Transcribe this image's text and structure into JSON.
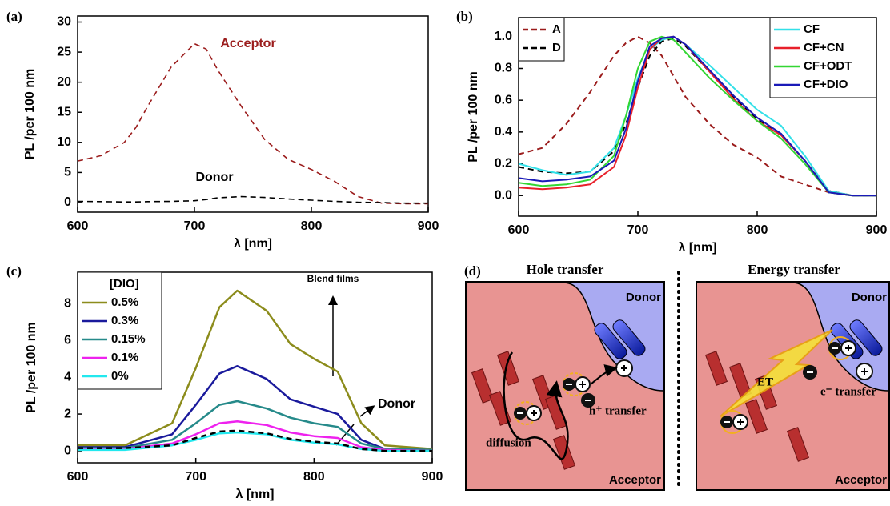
{
  "chart_data": [
    {
      "type": "line",
      "panel_label": "(a)",
      "xlabel": "λ [nm]",
      "ylabel": "PL /per 100 nm",
      "xlim": [
        600,
        900
      ],
      "ylim": [
        -1.6,
        31
      ],
      "xticks": [
        600,
        700,
        800,
        900
      ],
      "yticks": [
        0,
        5,
        10,
        15,
        20,
        25,
        30
      ],
      "x": [
        600,
        620,
        640,
        650,
        660,
        680,
        700,
        710,
        720,
        740,
        760,
        780,
        800,
        820,
        840,
        860,
        880,
        900
      ],
      "series": [
        {
          "color": "#9b1c1c",
          "dashed": true,
          "values": [
            6.9,
            7.8,
            10,
            12.5,
            16,
            22.5,
            26.4,
            25.5,
            22,
            16,
            10.5,
            7.2,
            5.5,
            3.5,
            1,
            -0.1,
            -0.2,
            -0.2
          ]
        },
        {
          "color": "#000000",
          "dashed": true,
          "values": [
            0.2,
            0.15,
            0.1,
            0.1,
            0.15,
            0.2,
            0.3,
            0.5,
            0.8,
            1.0,
            0.85,
            0.6,
            0.4,
            0.2,
            0.05,
            0,
            -0.1,
            -0.1
          ]
        }
      ],
      "annotations": [
        {
          "text": "Acceptor",
          "color": "#9b1c1c"
        },
        {
          "text": "Donor",
          "color": "#000000"
        }
      ]
    },
    {
      "type": "line",
      "panel_label": "(b)",
      "xlabel": "λ [nm]",
      "ylabel": "PL /per 100 nm",
      "xlim": [
        600,
        900
      ],
      "ylim": [
        -0.13,
        1.12
      ],
      "xticks": [
        600,
        700,
        800,
        900
      ],
      "yticks": [
        {
          "value": 0,
          "label": "0.0"
        },
        0.2,
        0.4,
        0.6,
        0.8,
        {
          "value": 1,
          "label": "1.0"
        }
      ],
      "x": [
        600,
        620,
        640,
        660,
        680,
        690,
        700,
        710,
        720,
        730,
        740,
        760,
        780,
        800,
        820,
        840,
        860,
        880,
        900
      ],
      "series": [
        {
          "name": "A",
          "color": "#9b1c1c",
          "dashed": true,
          "legend": "upper left",
          "values": [
            0.26,
            0.3,
            0.45,
            0.65,
            0.88,
            0.96,
            1.0,
            0.96,
            0.88,
            0.75,
            0.62,
            0.45,
            0.32,
            0.24,
            0.12,
            0.07,
            0.02,
            0,
            0
          ]
        },
        {
          "name": "D",
          "color": "#000000",
          "dashed": true,
          "legend": "upper left",
          "values": [
            0.18,
            0.15,
            0.14,
            0.15,
            0.28,
            0.45,
            0.68,
            0.88,
            0.97,
            0.99,
            0.94,
            0.78,
            0.62,
            0.48,
            0.38,
            0.22,
            0.03,
            0,
            0
          ]
        },
        {
          "name": "CF",
          "color": "#33e0e8",
          "legend": "upper right",
          "values": [
            0.2,
            0.16,
            0.13,
            0.15,
            0.3,
            0.5,
            0.74,
            0.92,
            0.98,
            1.0,
            0.95,
            0.82,
            0.68,
            0.54,
            0.44,
            0.25,
            0.03,
            0,
            0
          ]
        },
        {
          "name": "CF+CN",
          "color": "#e8202a",
          "legend": "upper right",
          "values": [
            0.05,
            0.04,
            0.05,
            0.07,
            0.18,
            0.38,
            0.68,
            0.92,
            0.99,
            1.0,
            0.95,
            0.78,
            0.61,
            0.47,
            0.38,
            0.22,
            0.02,
            0,
            0
          ]
        },
        {
          "name": "CF+ODT",
          "color": "#33d633",
          "legend": "upper right",
          "values": [
            0.08,
            0.06,
            0.07,
            0.1,
            0.25,
            0.5,
            0.8,
            0.97,
            1.0,
            0.98,
            0.9,
            0.74,
            0.6,
            0.47,
            0.36,
            0.2,
            0.02,
            0,
            0
          ]
        },
        {
          "name": "CF+DIO",
          "color": "#1a1ab8",
          "legend": "upper right",
          "values": [
            0.11,
            0.09,
            0.1,
            0.12,
            0.22,
            0.42,
            0.72,
            0.94,
            0.99,
            1.0,
            0.95,
            0.79,
            0.63,
            0.49,
            0.39,
            0.22,
            0.02,
            0,
            0
          ]
        }
      ]
    },
    {
      "type": "line",
      "panel_label": "(c)",
      "xlabel": "λ [nm]",
      "ylabel": "PL /per 100 nm",
      "xlim": [
        600,
        900
      ],
      "ylim": [
        -0.65,
        9.7
      ],
      "xticks": [
        600,
        700,
        800,
        900
      ],
      "yticks": [
        0,
        2,
        4,
        6,
        8
      ],
      "legend": "upper left",
      "legend_title": "[DIO]",
      "x": [
        600,
        640,
        680,
        700,
        720,
        735,
        760,
        780,
        800,
        820,
        840,
        860,
        900
      ],
      "series": [
        {
          "name": "0.5%",
          "color": "#8c8c1c",
          "values": [
            0.3,
            0.3,
            1.5,
            4.5,
            7.8,
            8.7,
            7.6,
            5.8,
            5.0,
            4.3,
            1.5,
            0.3,
            0.1
          ]
        },
        {
          "name": "0.3%",
          "color": "#1a1a9c",
          "values": [
            0.2,
            0.2,
            0.9,
            2.5,
            4.2,
            4.6,
            3.9,
            2.8,
            2.4,
            2.0,
            0.6,
            0.1,
            0.05
          ]
        },
        {
          "name": "0.15%",
          "color": "#268a8a",
          "values": [
            0.15,
            0.15,
            0.6,
            1.5,
            2.5,
            2.7,
            2.3,
            1.8,
            1.5,
            1.3,
            0.4,
            0.1,
            0.05
          ]
        },
        {
          "name": "0.1%",
          "color": "#ee22ee",
          "values": [
            0.1,
            0.1,
            0.4,
            0.9,
            1.5,
            1.6,
            1.4,
            1.0,
            0.8,
            0.7,
            0.2,
            0.05,
            0
          ]
        },
        {
          "name": "0%",
          "color": "#22e8ee",
          "values": [
            0.05,
            0.05,
            0.3,
            0.6,
            0.95,
            1.0,
            0.9,
            0.6,
            0.45,
            0.35,
            0.1,
            0,
            0
          ]
        },
        {
          "color": "#000000",
          "dashed": true,
          "values": [
            0.15,
            0.15,
            0.3,
            0.7,
            1.05,
            1.1,
            0.95,
            0.65,
            0.5,
            0.4,
            0.1,
            0,
            0
          ]
        }
      ],
      "annotations": [
        {
          "text": "Blend films",
          "color": "#000000"
        },
        {
          "text": "Donor",
          "color": "#000000"
        }
      ]
    }
  ],
  "diagram": {
    "panel_label": "(d)",
    "panels": [
      {
        "title": "Hole transfer",
        "labels": [
          "Donor",
          "Acceptor",
          "diffusion",
          "h⁺ transfer"
        ]
      },
      {
        "title": "Energy transfer",
        "labels": [
          "Donor",
          "Acceptor",
          "ET",
          "e⁻ transfer"
        ]
      }
    ]
  }
}
